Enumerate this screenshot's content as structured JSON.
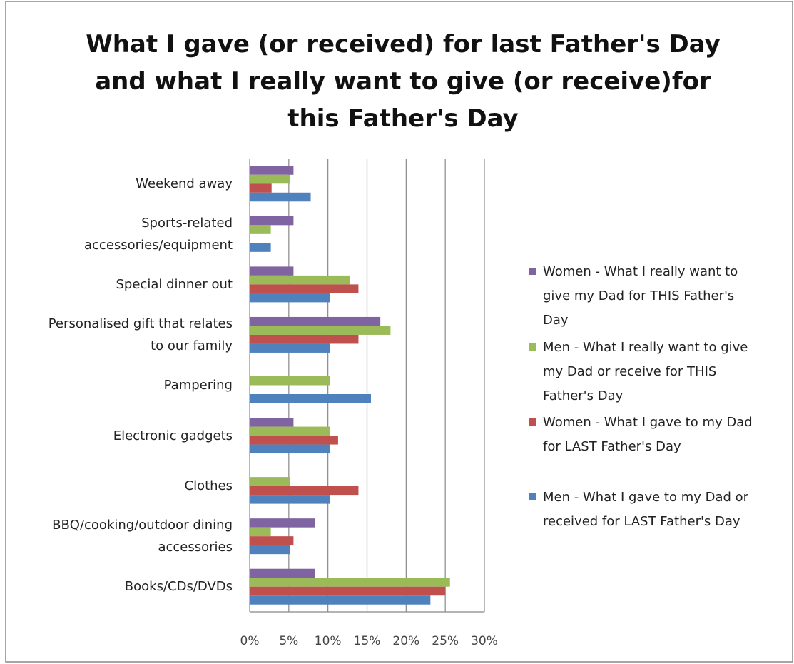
{
  "chart_data": {
    "type": "barh",
    "title": "What I gave (or received) for last Father's Day\nand what I really want to give (or receive)for\nthis Father's Day",
    "categories": [
      "Weekend away",
      "Sports-related\naccessories/equipment",
      "Special dinner out",
      "Personalised gift that relates\nto our family",
      "Pampering",
      "Electronic gadgets",
      "Clothes",
      "BBQ/cooking/outdoor dining\naccessories",
      "Books/CDs/DVDs"
    ],
    "series": [
      {
        "name": "Women - What I really want to\ngive my Dad for THIS Father's\nDay",
        "color": "#8064a2",
        "values": [
          5.6,
          5.6,
          5.6,
          16.7,
          0,
          5.6,
          0,
          8.3,
          8.3
        ]
      },
      {
        "name": "Men - What I really want to give\nmy Dad or receive for THIS\nFather's Day",
        "color": "#9bbb59",
        "values": [
          5.2,
          2.7,
          12.8,
          18,
          10.3,
          10.3,
          5.2,
          2.7,
          25.6
        ]
      },
      {
        "name": "Women - What I gave to my Dad\nfor LAST Father's Day",
        "color": "#c0504d",
        "values": [
          2.8,
          0,
          13.9,
          13.9,
          0,
          11.3,
          13.9,
          5.6,
          25
        ]
      },
      {
        "name": "Men - What I gave to my Dad or\nreceived for LAST Father's Day",
        "color": "#4f81bd",
        "values": [
          7.8,
          2.7,
          10.3,
          10.3,
          15.5,
          10.3,
          10.3,
          5.2,
          23.1
        ]
      }
    ],
    "xlim": [
      0,
      30
    ],
    "xticks": [
      {
        "value": 0,
        "label": "0%"
      },
      {
        "value": 5,
        "label": "5%"
      },
      {
        "value": 10,
        "label": "10%"
      },
      {
        "value": 15,
        "label": "15%"
      },
      {
        "value": 20,
        "label": "20%"
      },
      {
        "value": 25,
        "label": "25%"
      },
      {
        "value": 30,
        "label": "30%"
      }
    ],
    "grid": true,
    "legend": "right"
  }
}
